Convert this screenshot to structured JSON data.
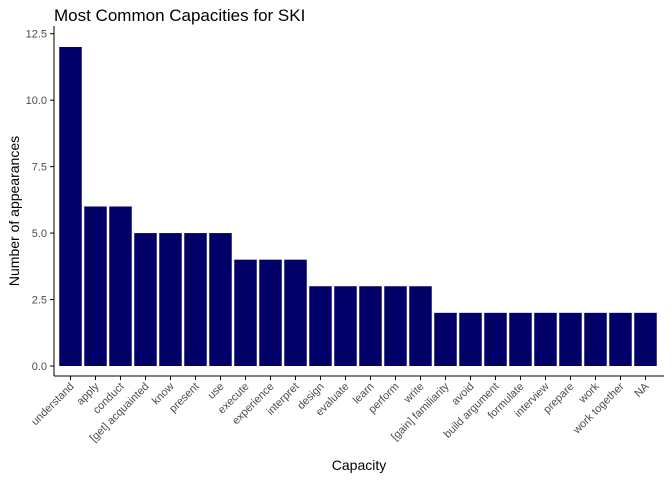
{
  "chart_data": {
    "type": "bar",
    "title": "Most Common Capacities for SKI",
    "xlabel": "Capacity",
    "ylabel": "Number of appearances",
    "categories": [
      "understand",
      "apply",
      "conduct",
      "[get] acquainted",
      "know",
      "present",
      "use",
      "execute",
      "experience",
      "interpret",
      "design",
      "evaluate",
      "learn",
      "perform",
      "write",
      "[gain] familiarity",
      "avoid",
      "build argument",
      "formulate",
      "interview",
      "prepare",
      "work",
      "work together",
      "NA"
    ],
    "values": [
      12,
      6,
      6,
      5,
      5,
      5,
      5,
      4,
      4,
      4,
      3,
      3,
      3,
      3,
      3,
      2,
      2,
      2,
      2,
      2,
      2,
      2,
      2,
      2
    ],
    "ylim": [
      0,
      12.5
    ],
    "yticks": [
      0.0,
      2.5,
      5.0,
      7.5,
      10.0,
      12.5
    ],
    "ytick_labels": [
      "0.0",
      "2.5",
      "5.0",
      "7.5",
      "10.0",
      "12.5"
    ],
    "bar_color": "#000066",
    "grid": false,
    "legend": "none"
  }
}
